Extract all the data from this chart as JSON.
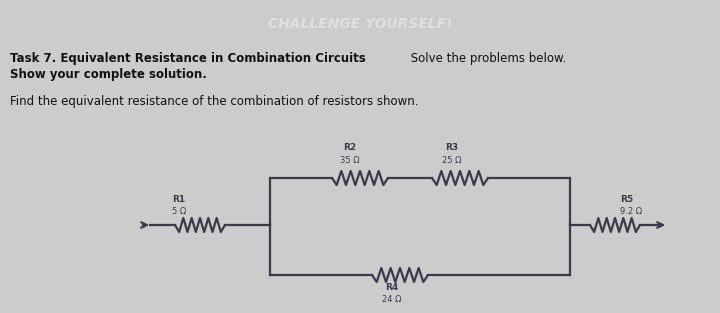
{
  "header_text": "CHALLENGE YOURSELF!",
  "header_bg": "#2c3a4b",
  "header_text_color": "#e0e0e0",
  "body_bg": "#cccccc",
  "R1_label": "R1",
  "R1_val": "5 Ω",
  "R2_label": "R2",
  "R2_val": "35 Ω",
  "R3_label": "R3",
  "R3_val": "25 Ω",
  "R4_label": "R4",
  "R4_val": "24 Ω",
  "R5_label": "R5",
  "R5_val": "9.2 Ω",
  "circuit_color": "#3a3a4a",
  "lw": 1.6
}
